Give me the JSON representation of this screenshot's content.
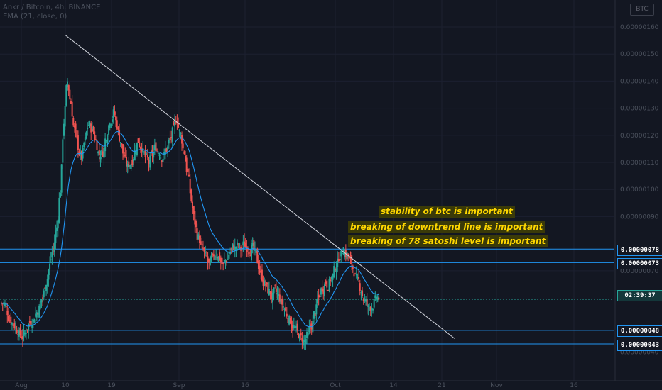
{
  "legend": {
    "symbol": "Ankr / Bitcoin, 4h, BINANCE",
    "indicator": "EMA (21, close, 0)"
  },
  "currency_button": "BTC",
  "annotations": [
    "stability of btc is important",
    "breaking of downtrend line is important",
    "breaking  of 78 satoshi level is important"
  ],
  "price_labels": {
    "level_78": "0.00000078",
    "level_73": "0.00000073",
    "countdown": "02:39:37",
    "level_48": "0.00000048",
    "level_43": "0.00000043"
  },
  "colors": {
    "background": "#131722",
    "up": "#26a69a",
    "down": "#ef5350",
    "ema": "#2196f3",
    "level_line": "#2196f3",
    "trendline": "#d1d4dc",
    "note_bg": "#3a3a08",
    "note_text": "#ffd700"
  },
  "chart_data": {
    "type": "candlestick",
    "symbol": "Ankr / Bitcoin",
    "interval": "4h",
    "exchange": "BINANCE",
    "indicator": "EMA (21, close, 0)",
    "y_axis": {
      "ticks": [
        "0.00000160",
        "0.00000150",
        "0.00000140",
        "0.00000130",
        "0.00000120",
        "0.00000110",
        "0.00000100",
        "0.00000090",
        "0.00000070",
        "0.00000040"
      ],
      "ylim": [
        3.7e-07,
        1.65e-06
      ]
    },
    "x_axis": {
      "ticks": [
        "Aug",
        "10",
        "19",
        "Sep",
        "16",
        "Oct",
        "14",
        "21",
        "Nov",
        "16"
      ]
    },
    "horizontal_levels": [
      7.8e-07,
      7.3e-07,
      4.8e-07,
      4.3e-07
    ],
    "current_price_level": 5.95e-07,
    "trendline": {
      "from": [
        "10",
        1.57e-06
      ],
      "to": [
        "21",
        4.5e-07
      ]
    },
    "approx_close_path": [
      5.8e-07,
      5.5e-07,
      5.2e-07,
      5e-07,
      4.8e-07,
      4.6e-07,
      4.7e-07,
      5e-07,
      5.2e-07,
      5.4e-07,
      5.6e-07,
      6e-07,
      6.6e-07,
      7.2e-07,
      7.8e-07,
      8.6e-07,
      1e-06,
      1.25e-06,
      1.4e-06,
      1.32e-06,
      1.22e-06,
      1.16e-06,
      1.12e-06,
      1.18e-06,
      1.24e-06,
      1.22e-06,
      1.18e-06,
      1.13e-06,
      1.14e-06,
      1.2e-06,
      1.26e-06,
      1.28e-06,
      1.24e-06,
      1.18e-06,
      1.12e-06,
      1.08e-06,
      1.1e-06,
      1.14e-06,
      1.18e-06,
      1.16e-06,
      1.12e-06,
      1.1e-06,
      1.13e-06,
      1.16e-06,
      1.14e-06,
      1.12e-06,
      1.15e-06,
      1.18e-06,
      1.22e-06,
      1.26e-06,
      1.2e-06,
      1.14e-06,
      1.06e-06,
      9.6e-07,
      8.8e-07,
      8.2e-07,
      7.8e-07,
      7.5e-07,
      7.2e-07,
      7.4e-07,
      7.7e-07,
      7.5e-07,
      7.2e-07,
      7.4e-07,
      7.7e-07,
      7.9e-07,
      7.9e-07,
      7.8e-07,
      8e-07,
      7.9e-07,
      7.8e-07,
      7.6e-07,
      7.2e-07,
      6.8e-07,
      6.5e-07,
      6.2e-07,
      6e-07,
      6.2e-07,
      6e-07,
      5.7e-07,
      5.4e-07,
      5.2e-07,
      4.9e-07,
      4.7e-07,
      4.5e-07,
      4.4e-07,
      4.6e-07,
      5e-07,
      5.5e-07,
      6e-07,
      6.4e-07,
      6.6e-07,
      6.5e-07,
      6.8e-07,
      7.2e-07,
      7.6e-07,
      7.8e-07,
      7.6e-07,
      7.3e-07,
      7e-07,
      6.6e-07,
      6.3e-07,
      5.9e-07,
      5.6e-07,
      5.7e-07,
      5.9e-07,
      6e-07
    ]
  }
}
